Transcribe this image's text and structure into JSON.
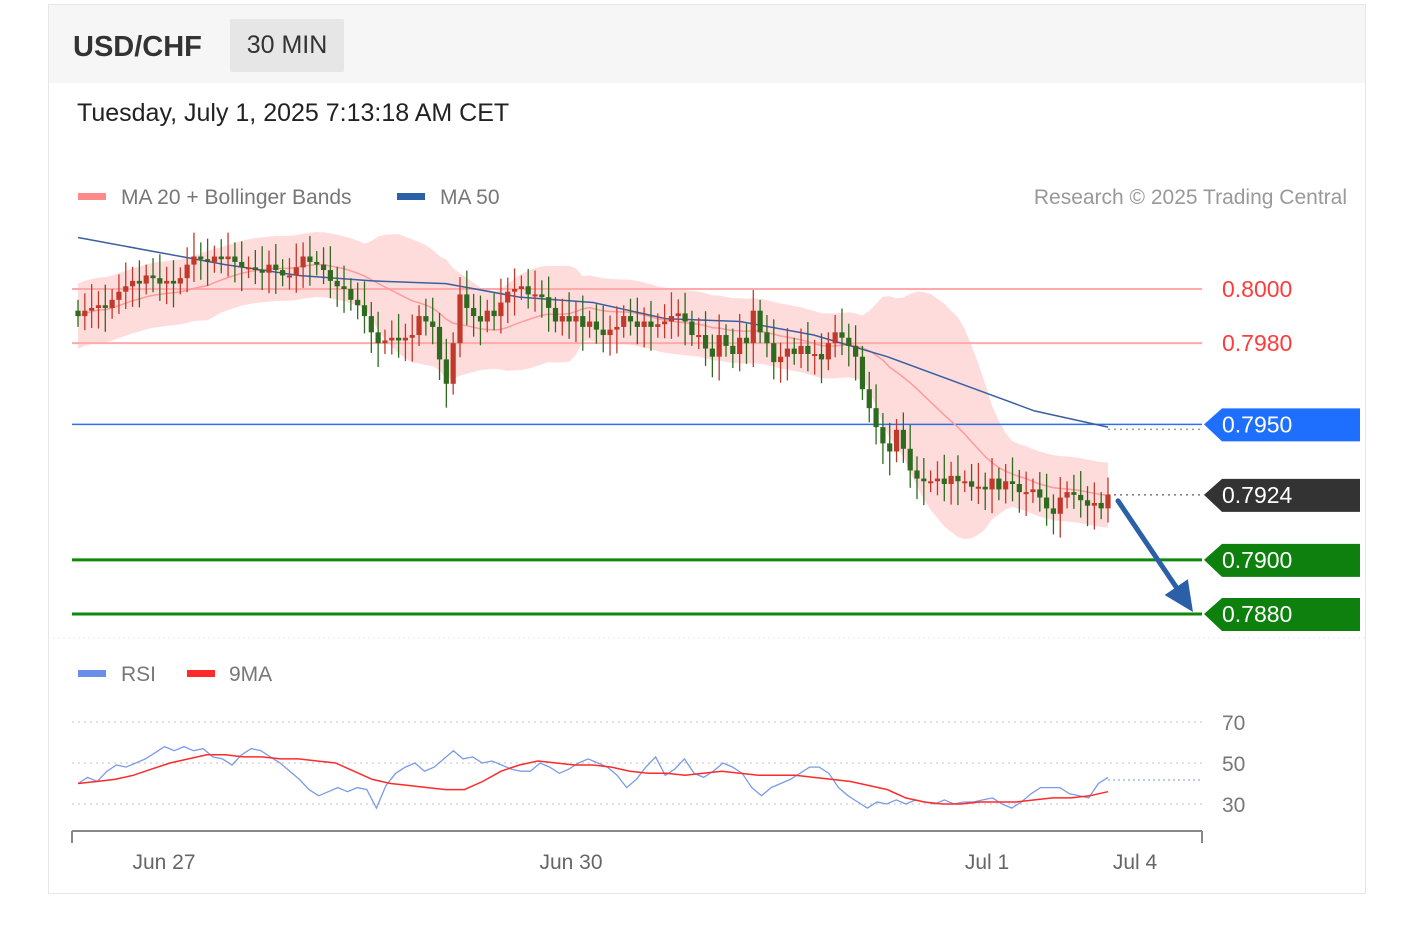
{
  "header": {
    "symbol": "USD/CHF",
    "timeframe": "30 MIN",
    "datetime": "Tuesday, July 1, 2025 7:13:18 AM CET"
  },
  "copyright": "Research © 2025 Trading Central",
  "colors": {
    "resistance": "#ff3b3b",
    "pivot": "#2f6fe8",
    "support": "#0c8a0c",
    "last_price": "#333333",
    "bollinger_band": "#ffc9c9",
    "ma20": "#ff8080",
    "ma50": "#3a5fa0",
    "candle_up": "#c0392b",
    "candle_down": "#2e6b1f",
    "rsi": "#6a8fe8",
    "rsi_ma": "#ff2a2a",
    "arrow": "#2b5fa8"
  },
  "chart_data": [
    {
      "type": "candlestick",
      "legend": [
        {
          "label": "MA 20 + Bollinger Bands",
          "color": "#ff8a8a"
        },
        {
          "label": "MA 50",
          "color": "#2b5fa8"
        }
      ],
      "x_ticks": [
        "Jun 27",
        "Jun 30",
        "Jul 1",
        "Jul 4"
      ],
      "ylim": [
        0.7872,
        0.8048
      ],
      "levels": [
        {
          "label": "0.8000",
          "value": 0.8,
          "kind": "resistance"
        },
        {
          "label": "0.7980",
          "value": 0.798,
          "kind": "resistance"
        },
        {
          "label": "0.7950",
          "value": 0.795,
          "kind": "pivot"
        },
        {
          "label": "0.7924",
          "value": 0.7924,
          "kind": "last"
        },
        {
          "label": "0.7900",
          "value": 0.79,
          "kind": "support"
        },
        {
          "label": "0.7880",
          "value": 0.788,
          "kind": "support"
        }
      ],
      "close_series": [
        0.799,
        0.7992,
        0.7993,
        0.7994,
        0.7993,
        0.7996,
        0.7999,
        0.8001,
        0.8003,
        0.8002,
        0.8005,
        0.8004,
        0.8002,
        0.8003,
        0.8002,
        0.8004,
        0.8009,
        0.8012,
        0.8011,
        0.801,
        0.8012,
        0.8011,
        0.8012,
        0.801,
        0.8008,
        0.8008,
        0.8007,
        0.8006,
        0.8009,
        0.8007,
        0.8005,
        0.8005,
        0.8008,
        0.8012,
        0.801,
        0.8009,
        0.8007,
        0.8003,
        0.8001,
        0.8,
        0.7996,
        0.7994,
        0.799,
        0.7984,
        0.798,
        0.7981,
        0.7982,
        0.7981,
        0.7982,
        0.7983,
        0.799,
        0.7988,
        0.7986,
        0.7974,
        0.7965,
        0.798,
        0.7998,
        0.7993,
        0.799,
        0.7988,
        0.7992,
        0.799,
        0.7995,
        0.7999,
        0.8,
        0.8001,
        0.7998,
        0.7998,
        0.7997,
        0.7993,
        0.7988,
        0.799,
        0.7988,
        0.799,
        0.7986,
        0.7988,
        0.7985,
        0.7983,
        0.7985,
        0.7986,
        0.799,
        0.7988,
        0.7986,
        0.7988,
        0.7986,
        0.7987,
        0.7988,
        0.799,
        0.7991,
        0.7988,
        0.7983,
        0.7983,
        0.7978,
        0.7975,
        0.7983,
        0.7979,
        0.7976,
        0.7982,
        0.798,
        0.7992,
        0.7984,
        0.798,
        0.7973,
        0.7975,
        0.7978,
        0.7976,
        0.7979,
        0.7976,
        0.7976,
        0.7974,
        0.798,
        0.7984,
        0.7982,
        0.7979,
        0.7975,
        0.7963,
        0.7956,
        0.7949,
        0.7943,
        0.794,
        0.7948,
        0.7941,
        0.7933,
        0.793,
        0.7929,
        0.7929,
        0.793,
        0.7928,
        0.7931,
        0.7929,
        0.7929,
        0.7927,
        0.7927,
        0.7926,
        0.793,
        0.7926,
        0.7929,
        0.7928,
        0.7925,
        0.7925,
        0.7926,
        0.7923,
        0.7919,
        0.7917,
        0.7923,
        0.7925,
        0.7924,
        0.7922,
        0.792,
        0.7921,
        0.7919,
        0.7924
      ],
      "ma50_series": [
        0.8019,
        0.8014,
        0.8009,
        0.8005,
        0.8003,
        0.8002,
        0.7997,
        0.7995,
        0.7989,
        0.7988,
        0.7983,
        0.7975,
        0.7965,
        0.7955,
        0.7949
      ],
      "arrow": {
        "from": 0.7924,
        "to": 0.788
      }
    },
    {
      "type": "line",
      "legend": [
        {
          "label": "RSI",
          "color": "#6a8fe8"
        },
        {
          "label": "9MA",
          "color": "#ff2a2a"
        }
      ],
      "y_ticks": [
        "70",
        "50",
        "30"
      ],
      "ylim": [
        18,
        78
      ],
      "series": [
        {
          "name": "RSI",
          "values": [
            40,
            43,
            41,
            46,
            49,
            48,
            50,
            52,
            55,
            58,
            56,
            58,
            56,
            57,
            53,
            52,
            49,
            54,
            57,
            56,
            53,
            50,
            46,
            42,
            37,
            34,
            36,
            38,
            36,
            38,
            37,
            28,
            39,
            45,
            48,
            50,
            46,
            48,
            52,
            56,
            52,
            53,
            50,
            51,
            49,
            47,
            46,
            46,
            50,
            48,
            45,
            47,
            50,
            52,
            50,
            48,
            44,
            38,
            42,
            48,
            53,
            44,
            47,
            52,
            45,
            43,
            46,
            50,
            48,
            45,
            38,
            34,
            38,
            40,
            42,
            45,
            48,
            48,
            45,
            38,
            34,
            31,
            28,
            31,
            30,
            32,
            30,
            32,
            31,
            30,
            32,
            30,
            31,
            31,
            32,
            33,
            30,
            28,
            31,
            35,
            38,
            38,
            38,
            35,
            34,
            33,
            40,
            43
          ]
        },
        {
          "name": "9MA",
          "values": [
            40,
            41,
            42,
            44,
            47,
            50,
            52,
            54,
            54,
            53,
            53,
            52,
            52,
            51,
            50,
            46,
            42,
            40,
            39,
            38,
            37,
            37,
            41,
            46,
            49,
            51,
            50,
            49,
            49,
            48,
            46,
            45,
            45,
            44,
            45,
            46,
            45,
            44,
            44,
            44,
            43,
            42,
            41,
            39,
            37,
            33,
            31,
            30,
            30,
            31,
            31,
            31,
            32,
            33,
            33,
            34,
            36
          ]
        }
      ]
    }
  ]
}
